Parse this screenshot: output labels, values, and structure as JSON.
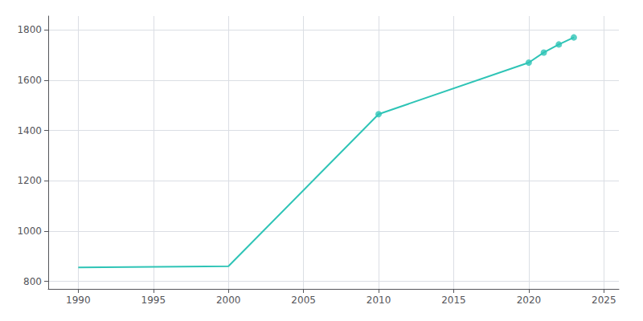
{
  "chart_data": {
    "type": "line",
    "series": [
      {
        "type": "line",
        "color": "#2ec4b6",
        "x": [
          1990,
          2000,
          2010,
          2020,
          2021,
          2022,
          2023
        ],
        "values": [
          855,
          860,
          1465,
          1670,
          1710,
          1742,
          1770
        ]
      },
      {
        "type": "scatter",
        "color": "#2ec4b6",
        "marker": "circle",
        "x": [
          2010,
          2020,
          2021,
          2022,
          2023
        ],
        "values": [
          1465,
          1670,
          1710,
          1742,
          1770
        ]
      }
    ],
    "xlim": [
      1988,
      2026
    ],
    "ylim": [
      770,
      1855
    ],
    "xticks": [
      1990,
      1995,
      2000,
      2005,
      2010,
      2015,
      2020,
      2025
    ],
    "yticks": [
      800,
      1000,
      1200,
      1400,
      1600,
      1800
    ],
    "grid": true
  }
}
